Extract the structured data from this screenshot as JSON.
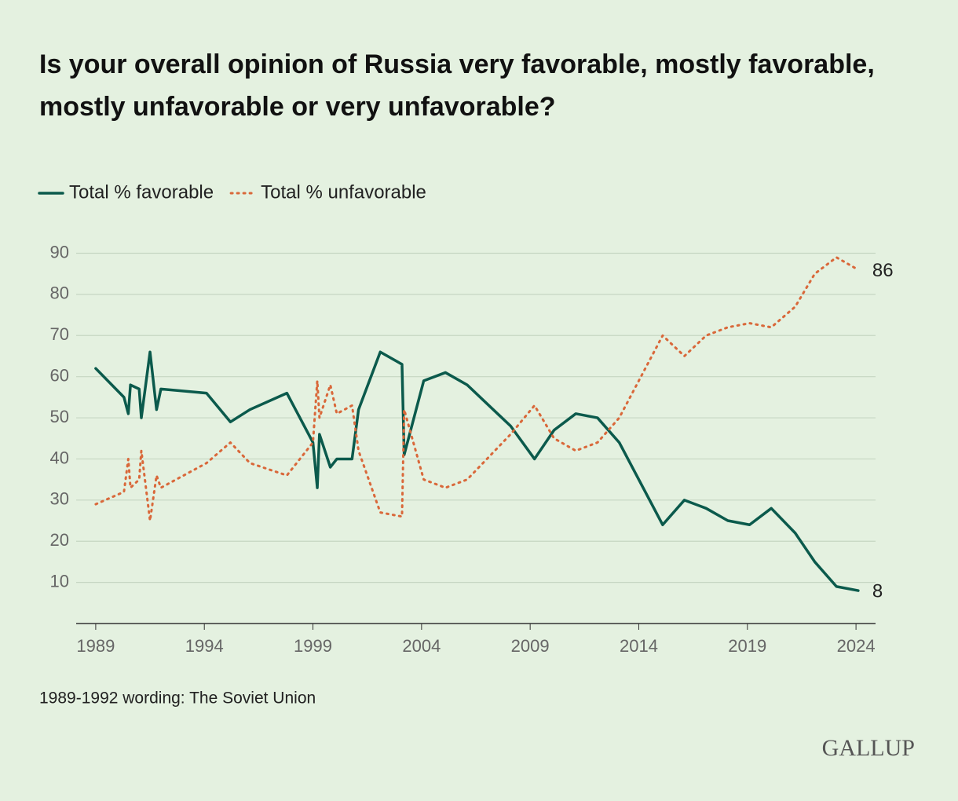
{
  "chart_data": {
    "type": "line",
    "title": "Is your overall opinion of Russia very favorable, mostly favorable, mostly unfavorable or very unfavorable?",
    "x": [
      1989.0,
      1990.3,
      1990.5,
      1990.6,
      1991.0,
      1991.1,
      1991.5,
      1991.8,
      1992.0,
      1994.1,
      1995.2,
      1996.1,
      1997.8,
      1999.0,
      1999.2,
      1999.3,
      1999.8,
      2000.1,
      2000.8,
      2001.1,
      2002.1,
      2003.1,
      2003.2,
      2004.1,
      2005.1,
      2006.1,
      2008.1,
      2009.2,
      2010.1,
      2011.1,
      2012.1,
      2013.1,
      2015.1,
      2016.1,
      2017.1,
      2018.1,
      2019.1,
      2020.1,
      2021.2,
      2022.1,
      2023.1,
      2024.1
    ],
    "series": [
      {
        "name": "Total % favorable",
        "color": "#0b5a4c",
        "dash": "solid",
        "values": [
          62,
          55,
          51,
          58,
          57,
          50,
          66,
          52,
          57,
          56,
          49,
          52,
          56,
          44,
          33,
          46,
          38,
          40,
          40,
          52,
          66,
          63,
          41,
          59,
          61,
          58,
          48,
          40,
          47,
          51,
          50,
          44,
          24,
          30,
          28,
          25,
          24,
          28,
          22,
          15,
          9,
          8
        ]
      },
      {
        "name": "Total % unfavorable",
        "color": "#d9683a",
        "dash": "dotted",
        "values": [
          29,
          32,
          40,
          33,
          35,
          42,
          25,
          36,
          33,
          39,
          44,
          39,
          36,
          44,
          59,
          50,
          58,
          51,
          53,
          42,
          27,
          26,
          52,
          35,
          33,
          35,
          46,
          53,
          45,
          42,
          44,
          50,
          70,
          65,
          70,
          72,
          73,
          72,
          77,
          85,
          89,
          86
        ]
      }
    ],
    "xlim": [
      1988.1,
      2024.9
    ],
    "xticks": [
      1989,
      1994,
      1999,
      2004,
      2009,
      2014,
      2019,
      2024
    ],
    "ylim": [
      0,
      90
    ],
    "yticks": [
      10,
      20,
      30,
      40,
      50,
      60,
      70,
      80,
      90
    ],
    "grid": true,
    "note": "1989-1992 wording: The Soviet Union",
    "source": "GALLUP"
  }
}
